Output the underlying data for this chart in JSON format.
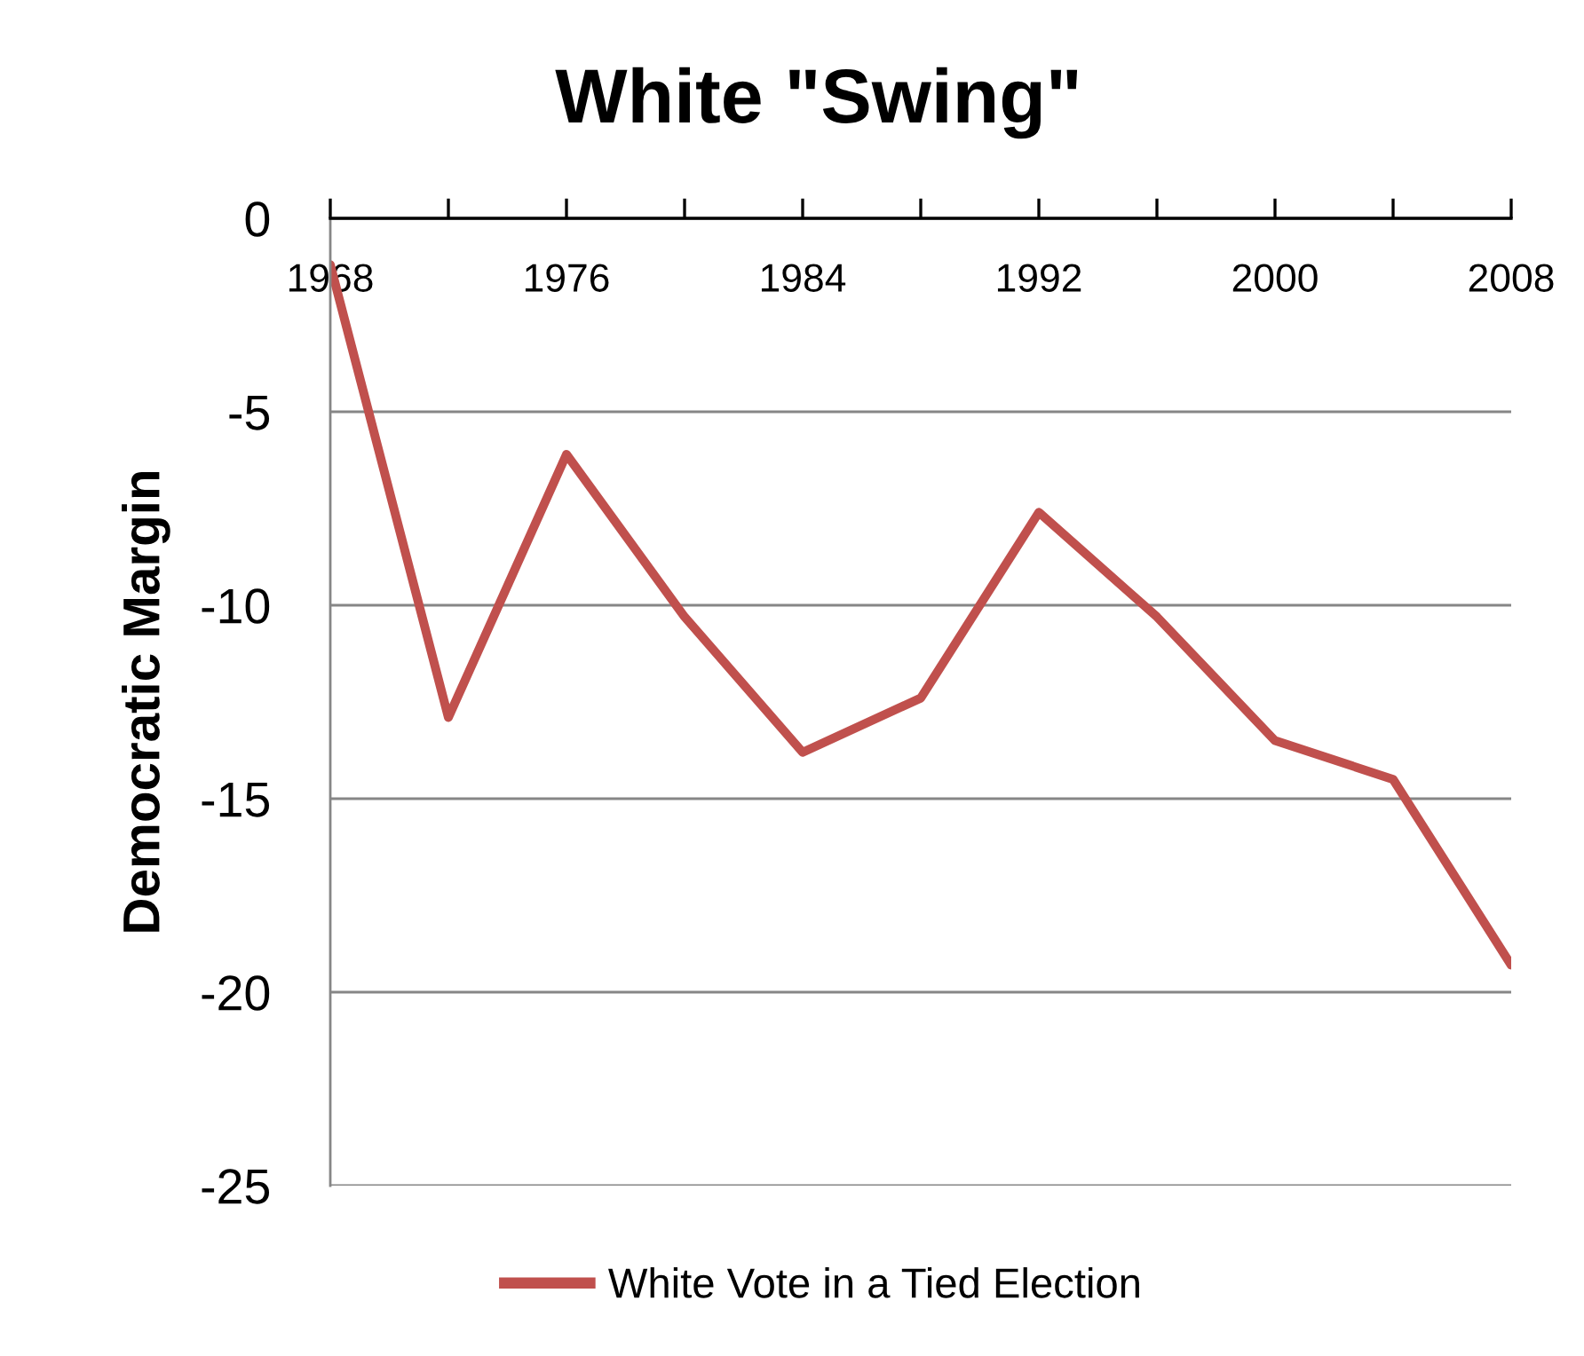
{
  "chart_data": {
    "type": "line",
    "title": "White \"Swing\"",
    "ylabel": "Democratic Margin",
    "x": [
      1968,
      1972,
      1976,
      1980,
      1984,
      1988,
      1992,
      1996,
      2000,
      2004,
      2008
    ],
    "series": [
      {
        "name": "White Vote in a Tied Election",
        "color": "#c0504d",
        "values": [
          -1.2,
          -12.9,
          -6.1,
          -10.3,
          -13.8,
          -12.4,
          -7.6,
          -10.3,
          -13.5,
          -14.5,
          -19.3
        ]
      }
    ],
    "xlim": [
      1968,
      2008
    ],
    "xticks": [
      1968,
      {
        "value": 1972,
        "label": null
      },
      1976,
      {
        "value": 1980,
        "label": null
      },
      1984,
      {
        "value": 1988,
        "label": null
      },
      1992,
      {
        "value": 1996,
        "label": null
      },
      2000,
      {
        "value": 2004,
        "label": null
      },
      2008
    ],
    "ylim": [
      -25,
      0
    ],
    "yticks": [
      -25,
      -20,
      -15,
      -10,
      -5,
      0
    ],
    "grid": "y",
    "legend": "bottom"
  }
}
